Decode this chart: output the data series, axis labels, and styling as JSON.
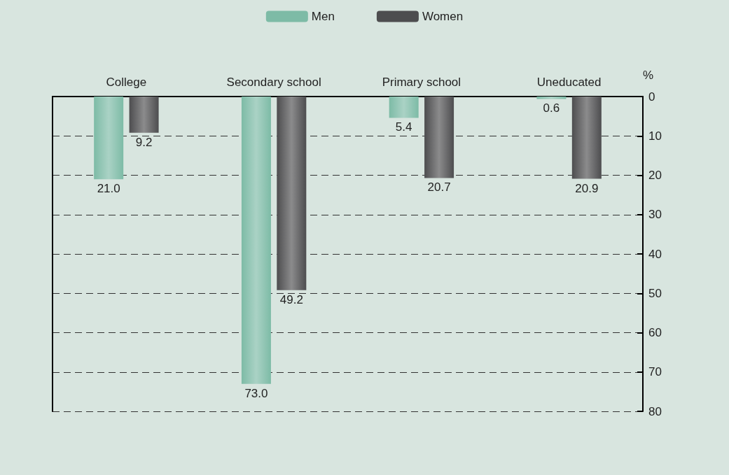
{
  "chart_data": {
    "type": "bar",
    "ylabel": "%",
    "categories": [
      "College",
      "Secondary school",
      "Primary school",
      "Uneducated"
    ],
    "series": [
      {
        "name": "Men",
        "color": "#7dbba6",
        "values": [
          21.0,
          73.0,
          5.4,
          0.6
        ],
        "value_labels": [
          "21.0",
          "73.0",
          "5.4",
          "0.6"
        ]
      },
      {
        "name": "Women",
        "color": "#4d4d4f",
        "values": [
          9.2,
          49.2,
          20.7,
          20.9
        ],
        "value_labels": [
          "9.2",
          "49.2",
          "20.7",
          "20.9"
        ]
      }
    ],
    "ylim": [
      80,
      0
    ],
    "yticks": [
      0,
      10,
      20,
      30,
      40,
      50,
      60,
      70,
      80
    ],
    "grid": "y",
    "legend": "top"
  }
}
